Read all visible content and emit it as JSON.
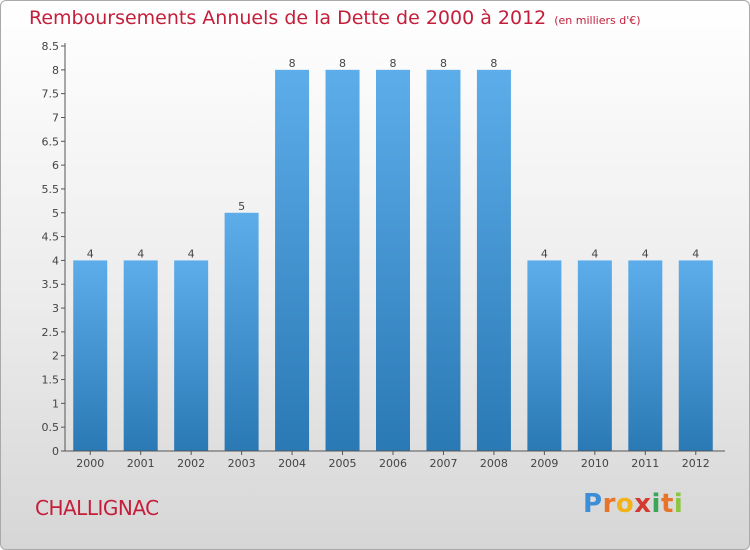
{
  "chart_data": {
    "type": "bar",
    "title": "Remboursements Annuels de la Dette de 2000 à 2012",
    "unit": "(en milliers d'€)",
    "categories": [
      "2000",
      "2001",
      "2002",
      "2003",
      "2004",
      "2005",
      "2006",
      "2007",
      "2008",
      "2009",
      "2010",
      "2011",
      "2012"
    ],
    "values": [
      4,
      4,
      4,
      5,
      8,
      8,
      8,
      8,
      8,
      4,
      4,
      4,
      4
    ],
    "data_labels": [
      "4",
      "4",
      "4",
      "5",
      "8",
      "8",
      "8",
      "8",
      "8",
      "4",
      "4",
      "4",
      "4"
    ],
    "ylim": [
      0,
      8.5
    ],
    "yticks": [
      "0",
      "0.5",
      "1",
      "1.5",
      "2",
      "2.5",
      "3",
      "3.5",
      "4",
      "4.5",
      "5",
      "5.5",
      "6",
      "6.5",
      "7",
      "7.5",
      "8",
      "8.5"
    ],
    "xlabel": "",
    "ylabel": "",
    "grid": false,
    "legend": "none",
    "colors": {
      "bar_light": "#5dadea",
      "bar_dark": "#2a79b5",
      "title": "#c41e3a",
      "axis": "#555555"
    }
  },
  "commune": "CHALLIGNAC",
  "logo": {
    "letters": [
      "P",
      "r",
      "o",
      "x",
      "i",
      "t",
      "i"
    ],
    "colors": [
      "#3d8ed8",
      "#e8742a",
      "#f2b21a",
      "#d43a2f",
      "#3aa657",
      "#e8742a",
      "#8cc63f"
    ]
  }
}
